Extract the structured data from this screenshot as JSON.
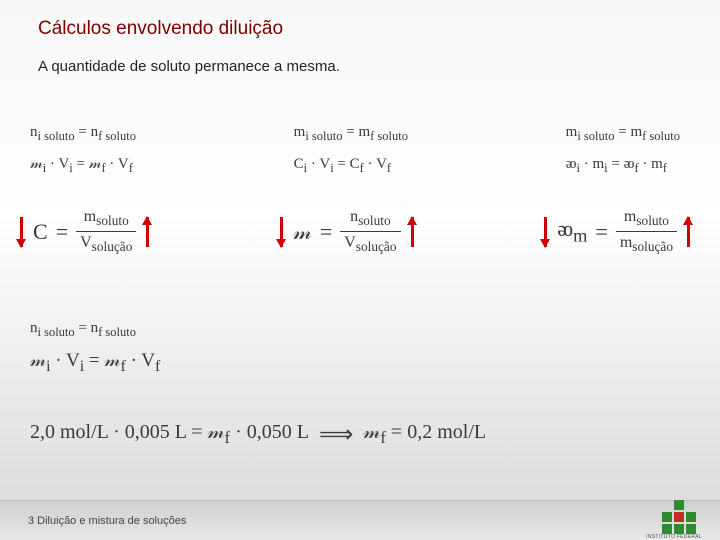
{
  "title": "Cálculos envolvendo diluição",
  "subtitle": "A quantidade de soluto permanece a mesma.",
  "footer": "3 Diluição e mistura de soluções",
  "row1": {
    "c1": {
      "l1": "n<sub>i soluto</sub> = n<sub>f soluto</sub>",
      "l2": "𝓂<sub>i</sub> · V<sub>i</sub> = 𝓂<sub>f</sub> · V<sub>f</sub>"
    },
    "c2": {
      "l1": "m<sub>i soluto</sub> = m<sub>f soluto</sub>",
      "l2": "C<sub>i</sub> · V<sub>i</sub> = C<sub>f</sub> · V<sub>f</sub>"
    },
    "c3": {
      "l1": "m<sub>i soluto</sub> = m<sub>f soluto</sub>",
      "l2": "ᴔ<sub>i</sub> · m<sub>i</sub> = ᴔ<sub>f</sub> · m<sub>f</sub>"
    }
  },
  "row2": {
    "c1": {
      "lhs": "C",
      "num": "m<sub>soluto</sub>",
      "den": "V<sub>solução</sub>"
    },
    "c2": {
      "lhs": "𝓂",
      "num": "n<sub>soluto</sub>",
      "den": "V<sub>solução</sub>"
    },
    "c3": {
      "lhs": "ᴔ<sub>m</sub>",
      "num": "m<sub>soluto</sub>",
      "den": "m<sub>solução</sub>"
    }
  },
  "row3": {
    "l1": "n<sub>i soluto</sub> = n<sub>f soluto</sub>",
    "l2": "𝓂<sub>i</sub> · V<sub>i</sub> = 𝓂<sub>f</sub> · V<sub>f</sub>"
  },
  "row4": {
    "lhs": "2,0 mol/L · 0,005 L = 𝓂<sub>f</sub> · 0,050 L",
    "rhs": "𝓂<sub>f</sub> = 0,2 mol/L"
  },
  "colors": {
    "title": "#7a0000",
    "arrow": "#d00000",
    "text": "#3a3a3a",
    "logo_green": "#2e8b2e",
    "logo_red": "#c03020"
  }
}
